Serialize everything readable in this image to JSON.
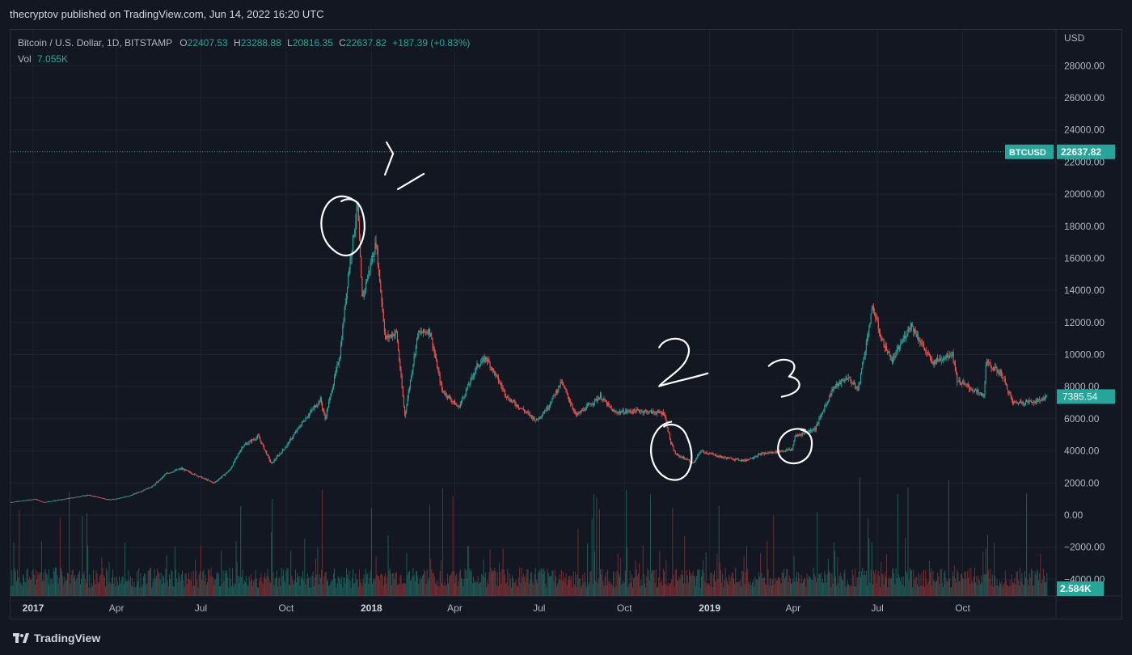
{
  "header": {
    "publisher": "thecryptov published on TradingView.com, Jun 14, 2022 16:20 UTC"
  },
  "legend": {
    "symbol": "Bitcoin / U.S. Dollar, 1D, BITSTAMP",
    "o_label": "O",
    "o_value": "22407.53",
    "h_label": "H",
    "h_value": "23288.88",
    "l_label": "L",
    "l_value": "20816.35",
    "c_label": "C",
    "c_value": "22637.82",
    "change": "+187.39 (+0.83%)",
    "vol_label": "Vol",
    "vol_value": "7.055K"
  },
  "footer": {
    "brand": "TradingView"
  },
  "colors": {
    "background": "#131722",
    "up": "#26a69a",
    "down": "#ef5350",
    "grid": "#1e222d",
    "text": "#d1d4dc",
    "badge": "#26a69a"
  },
  "chart_data": {
    "type": "candlestick",
    "currency": "USD",
    "y_ticks": [
      28000,
      26000,
      24000,
      22000,
      20000,
      18000,
      16000,
      14000,
      12000,
      10000,
      8000,
      6000,
      4000,
      2000,
      0,
      -2000,
      -4000
    ],
    "y_tick_labels": [
      "28000.00",
      "26000.00",
      "24000.00",
      "22000.00",
      "20000.00",
      "18000.00",
      "16000.00",
      "14000.00",
      "12000.00",
      "10000.00",
      "8000.00",
      "6000.00",
      "4000.00",
      "2000.00",
      "0.00",
      "−2000.00",
      "−4000.00"
    ],
    "ylim": [
      -5000,
      30000
    ],
    "x_ticks": [
      {
        "label": "2017",
        "date": "2017-01-01",
        "bold": true
      },
      {
        "label": "Apr",
        "date": "2017-04-01",
        "bold": false
      },
      {
        "label": "Jul",
        "date": "2017-07-01",
        "bold": false
      },
      {
        "label": "Oct",
        "date": "2017-10-01",
        "bold": false
      },
      {
        "label": "2018",
        "date": "2018-01-01",
        "bold": true
      },
      {
        "label": "Apr",
        "date": "2018-04-01",
        "bold": false
      },
      {
        "label": "Jul",
        "date": "2018-07-01",
        "bold": false
      },
      {
        "label": "Oct",
        "date": "2018-10-01",
        "bold": false
      },
      {
        "label": "2019",
        "date": "2019-01-01",
        "bold": true
      },
      {
        "label": "Apr",
        "date": "2019-04-01",
        "bold": false
      },
      {
        "label": "Jul",
        "date": "2019-07-01",
        "bold": false
      },
      {
        "label": "Oct",
        "date": "2019-10-01",
        "bold": false
      }
    ],
    "price_path": [
      [
        "2016-12-01",
        750
      ],
      [
        "2017-01-03",
        1000
      ],
      [
        "2017-01-12",
        800
      ],
      [
        "2017-02-01",
        970
      ],
      [
        "2017-03-01",
        1250
      ],
      [
        "2017-03-25",
        950
      ],
      [
        "2017-04-15",
        1200
      ],
      [
        "2017-05-10",
        1800
      ],
      [
        "2017-05-25",
        2600
      ],
      [
        "2017-06-10",
        2900
      ],
      [
        "2017-07-15",
        2000
      ],
      [
        "2017-08-01",
        2800
      ],
      [
        "2017-08-15",
        4300
      ],
      [
        "2017-09-01",
        4900
      ],
      [
        "2017-09-15",
        3200
      ],
      [
        "2017-10-01",
        4300
      ],
      [
        "2017-10-20",
        5900
      ],
      [
        "2017-11-07",
        7200
      ],
      [
        "2017-11-12",
        6000
      ],
      [
        "2017-11-28",
        10000
      ],
      [
        "2017-12-07",
        15000
      ],
      [
        "2017-12-17",
        19300
      ],
      [
        "2017-12-22",
        13500
      ],
      [
        "2018-01-06",
        17000
      ],
      [
        "2018-01-16",
        11000
      ],
      [
        "2018-01-28",
        11400
      ],
      [
        "2018-02-06",
        6200
      ],
      [
        "2018-02-20",
        11300
      ],
      [
        "2018-03-05",
        11500
      ],
      [
        "2018-03-18",
        7800
      ],
      [
        "2018-04-05",
        6700
      ],
      [
        "2018-04-25",
        9300
      ],
      [
        "2018-05-05",
        9800
      ],
      [
        "2018-05-28",
        7300
      ],
      [
        "2018-06-15",
        6500
      ],
      [
        "2018-06-28",
        5900
      ],
      [
        "2018-07-10",
        6700
      ],
      [
        "2018-07-25",
        8300
      ],
      [
        "2018-08-10",
        6200
      ],
      [
        "2018-09-05",
        7400
      ],
      [
        "2018-09-20",
        6400
      ],
      [
        "2018-10-15",
        6500
      ],
      [
        "2018-11-13",
        6350
      ],
      [
        "2018-11-20",
        4500
      ],
      [
        "2018-11-25",
        3800
      ],
      [
        "2018-12-15",
        3250
      ],
      [
        "2018-12-22",
        4000
      ],
      [
        "2019-01-15",
        3600
      ],
      [
        "2019-02-08",
        3400
      ],
      [
        "2019-02-25",
        3800
      ],
      [
        "2019-03-31",
        4100
      ],
      [
        "2019-04-03",
        4900
      ],
      [
        "2019-04-25",
        5400
      ],
      [
        "2019-05-14",
        7900
      ],
      [
        "2019-05-30",
        8600
      ],
      [
        "2019-06-10",
        7800
      ],
      [
        "2019-06-26",
        13000
      ],
      [
        "2019-07-05",
        11000
      ],
      [
        "2019-07-17",
        9600
      ],
      [
        "2019-08-06",
        11900
      ],
      [
        "2019-08-29",
        9500
      ],
      [
        "2019-09-20",
        10100
      ],
      [
        "2019-09-25",
        8400
      ],
      [
        "2019-10-24",
        7400
      ],
      [
        "2019-10-26",
        9500
      ],
      [
        "2019-11-12",
        8800
      ],
      [
        "2019-11-24",
        7000
      ],
      [
        "2019-12-20",
        7100
      ],
      [
        "2019-12-31",
        7385
      ]
    ],
    "volume_note": "Volume histogram drawn at bottom of pane",
    "current_price": {
      "symbol": "BTCUSD",
      "value": "22637.82"
    },
    "last_price": "7385.54",
    "last_volume": "2.584K",
    "annotations": [
      {
        "label": "1",
        "date": "2017-12-17",
        "price": 19300
      },
      {
        "label": "2",
        "date": "2018-11-25",
        "price": 3800
      },
      {
        "label": "3",
        "date": "2019-04-01",
        "price": 4100
      }
    ]
  }
}
